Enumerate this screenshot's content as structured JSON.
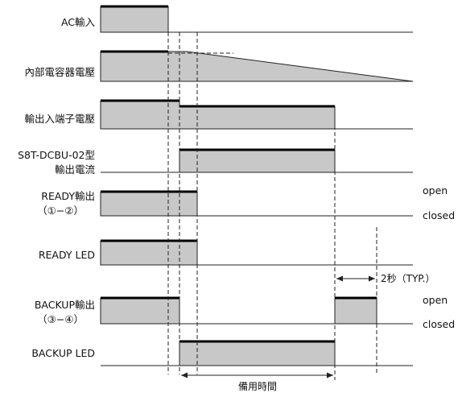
{
  "signals": [
    {
      "id": "ac-input",
      "lines": [
        "AC輸入"
      ],
      "side_high": "",
      "side_low": ""
    },
    {
      "id": "internal-capacitor-voltage",
      "lines": [
        "內部電容器電壓"
      ],
      "side_high": "",
      "side_low": ""
    },
    {
      "id": "io-terminal-voltage",
      "lines": [
        "輸出入端子電壓"
      ],
      "side_high": "",
      "side_low": ""
    },
    {
      "id": "s8t-output-current",
      "lines": [
        "S8T-DCBU-02型",
        "輸出電流"
      ],
      "side_high": "",
      "side_low": ""
    },
    {
      "id": "ready-output",
      "lines": [
        "READY輸出",
        "（①−②）"
      ],
      "side_high": "open",
      "side_low": "closed"
    },
    {
      "id": "ready-led",
      "lines": [
        "READY LED"
      ],
      "side_high": "",
      "side_low": ""
    },
    {
      "id": "backup-output",
      "lines": [
        "BACKUP輸出",
        "（③−④）"
      ],
      "side_high": "open",
      "side_low": "closed"
    },
    {
      "id": "backup-led",
      "lines": [
        "BACKUP LED"
      ],
      "side_high": "",
      "side_low": ""
    }
  ],
  "annotations": {
    "delay": "2秒（TYP.）",
    "backup_time": "備用時間"
  }
}
